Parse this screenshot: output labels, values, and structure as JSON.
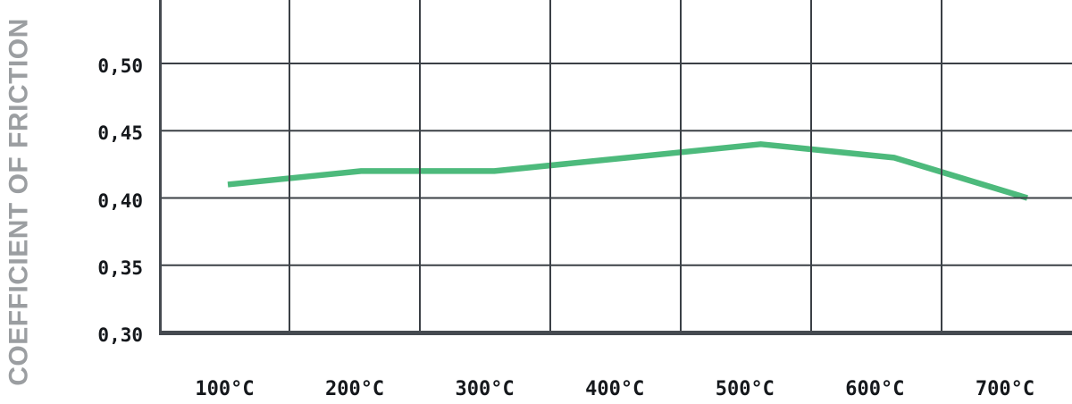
{
  "chart_data": {
    "type": "line",
    "categories": [
      "100°C",
      "200°C",
      "300°C",
      "400°C",
      "500°C",
      "600°C",
      "700°C"
    ],
    "series": [
      {
        "name": "coefficient-of-friction",
        "values": [
          0.41,
          0.42,
          0.42,
          0.43,
          0.44,
          0.43,
          0.4
        ]
      }
    ],
    "title": "",
    "xlabel": "",
    "ylabel": "COEFFICIENT OF FRICTION",
    "y_ticks": [
      {
        "label": "0,50",
        "value": 0.5
      },
      {
        "label": "0,45",
        "value": 0.45
      },
      {
        "label": "0,40",
        "value": 0.4
      },
      {
        "label": "0,35",
        "value": 0.35
      },
      {
        "label": "0,30",
        "value": 0.3
      }
    ],
    "ylim_visible": [
      0.3,
      0.547
    ],
    "y_tick_step": 0.05,
    "grid": true,
    "legend": "none",
    "decimal_separator": ","
  },
  "colors": {
    "line": "#4dba7c",
    "grid": "#3b4046",
    "axis": "#454a50",
    "axis_title": "#9b9ea1",
    "tick_text": "#15181c",
    "background": "#ffffff"
  }
}
